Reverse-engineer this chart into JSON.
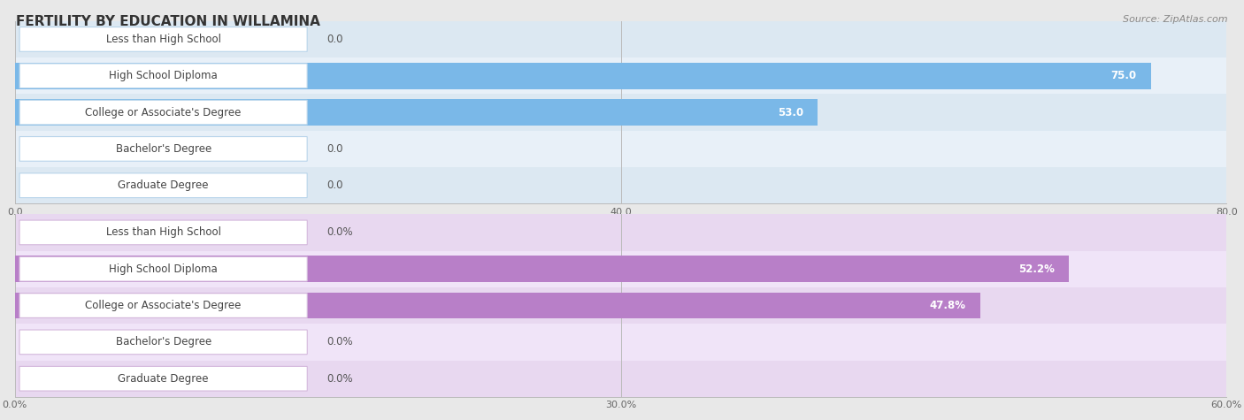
{
  "title": "FERTILITY BY EDUCATION IN WILLAMINA",
  "source": "Source: ZipAtlas.com",
  "top_chart": {
    "categories": [
      "Less than High School",
      "High School Diploma",
      "College or Associate's Degree",
      "Bachelor's Degree",
      "Graduate Degree"
    ],
    "values": [
      0.0,
      75.0,
      53.0,
      0.0,
      0.0
    ],
    "x_ticks": [
      0.0,
      40.0,
      80.0
    ],
    "x_max": 80.0,
    "bar_color": "#7ab8e8",
    "label_bg_color": "#ffffff",
    "label_border_color": "#b8d4ea",
    "bar_bg_color_even": "#dce8f2",
    "bar_bg_color_odd": "#e8f0f8"
  },
  "bottom_chart": {
    "categories": [
      "Less than High School",
      "High School Diploma",
      "College or Associate's Degree",
      "Bachelor's Degree",
      "Graduate Degree"
    ],
    "values": [
      0.0,
      52.2,
      47.8,
      0.0,
      0.0
    ],
    "x_ticks": [
      0.0,
      30.0,
      60.0
    ],
    "x_max": 60.0,
    "bar_color": "#b87fc8",
    "label_bg_color": "#ffffff",
    "label_border_color": "#d4b8dc",
    "bar_bg_color_even": "#e8d8f0",
    "bar_bg_color_odd": "#f0e4f8"
  },
  "title_fontsize": 11,
  "label_fontsize": 8.5,
  "value_fontsize": 8.5,
  "tick_fontsize": 8,
  "source_fontsize": 8,
  "fig_bg_color": "#e8e8e8"
}
